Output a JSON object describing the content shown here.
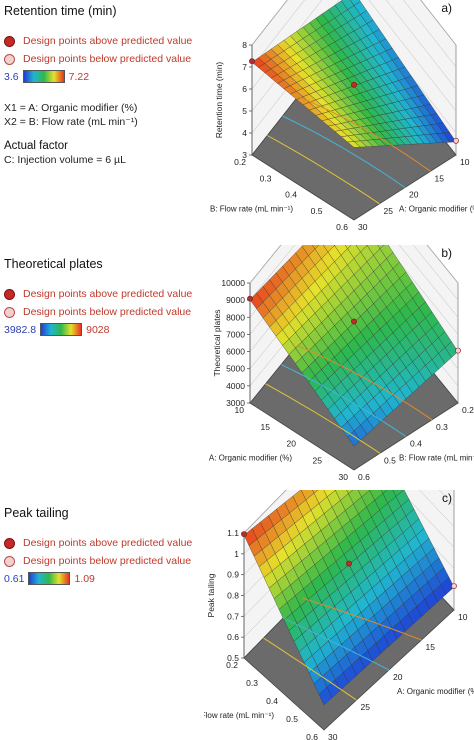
{
  "panels": [
    {
      "id": "a",
      "letter": "a)",
      "title": "Retention time (min)",
      "legend_above": "Design points above predicted value",
      "legend_below": "Design points below predicted value",
      "scale_low": "3.6",
      "scale_high": "7.22",
      "factors": [
        "X1 = A: Organic modifier (%)",
        "X2 = B: Flow rate (mL min⁻¹)"
      ],
      "actual_factor_heading": "Actual factor",
      "actual_factor": "C: Injection volume = 6 µL"
    },
    {
      "id": "b",
      "letter": "b)",
      "title": "Theoretical plates",
      "legend_above": "Design points above predicted value",
      "legend_below": "Design points below predicted value",
      "scale_low": "3982.8",
      "scale_high": "9028"
    },
    {
      "id": "c",
      "letter": "c)",
      "title": "Peak tailing",
      "legend_above": "Design points above predicted value",
      "legend_below": "Design points below predicted value",
      "scale_low": "0.61",
      "scale_high": "1.09"
    }
  ],
  "chart_data": [
    {
      "type": "surface",
      "zlabel": "Retention time (min)",
      "xlabel": "A: Organic modifier (%)",
      "ylabel": "B: Flow rate (mL min⁻¹)",
      "x_ticks": [
        "10",
        "15",
        "20",
        "25",
        "30"
      ],
      "y_ticks": [
        "0.2",
        "0.3",
        "0.4",
        "0.5",
        "0.6"
      ],
      "z_ticks": [
        "3",
        "4",
        "5",
        "6",
        "7",
        "8"
      ],
      "zlim": [
        3,
        8
      ],
      "colorscale": {
        "min": 3.6,
        "max": 7.22
      },
      "corners": {
        "low_A_low_B": 7.22,
        "high_A_low_B": 6.3,
        "low_A_high_B": 4.5,
        "high_A_high_B": 3.6
      }
    },
    {
      "type": "surface",
      "zlabel": "Theoretical plates",
      "xlabel": "A: Organic modifier (%)",
      "ylabel": "B: Flow rate (mL min⁻¹)",
      "x_ticks": [
        "10",
        "15",
        "20",
        "25",
        "30"
      ],
      "y_ticks": [
        "0.2",
        "0.3",
        "0.4",
        "0.5",
        "0.6"
      ],
      "z_ticks": [
        "3000",
        "4000",
        "5000",
        "6000",
        "7000",
        "8000",
        "9000",
        "10000"
      ],
      "zlim": [
        3000,
        10000
      ],
      "colorscale": {
        "min": 3982.8,
        "max": 9028
      },
      "corners": {
        "low_A_low_B": 9028,
        "high_A_low_B": 4400,
        "low_A_high_B": 7800,
        "high_A_high_B": 6000
      }
    },
    {
      "type": "surface",
      "zlabel": "Peak tailing",
      "xlabel": "A: Organic modifier (%)",
      "ylabel": "B: Flow rate (mL min⁻¹)",
      "x_ticks": [
        "10",
        "15",
        "20",
        "25",
        "30"
      ],
      "y_ticks": [
        "0.2",
        "0.3",
        "0.4",
        "0.5",
        "0.6"
      ],
      "z_ticks": [
        "0.5",
        "0.6",
        "0.7",
        "0.8",
        "0.9",
        "1",
        "1.1"
      ],
      "zlim": [
        0.5,
        1.1
      ],
      "colorscale": {
        "min": 0.61,
        "max": 1.09
      },
      "corners": {
        "low_A_low_B": 1.09,
        "high_A_low_B": 0.62,
        "low_A_high_B": 0.95,
        "high_A_high_B": 0.61
      }
    }
  ]
}
